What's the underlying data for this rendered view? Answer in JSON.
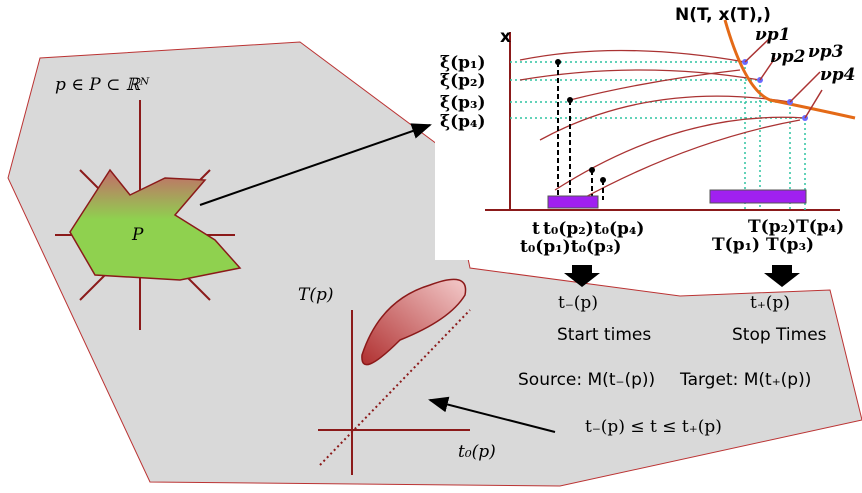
{
  "inset": {
    "curve_label": "N(T, x(T),)",
    "axis_label": "x",
    "normals": [
      "νp1",
      "νp2",
      "νp3",
      "νp4"
    ],
    "xi_labels": [
      "ξ(p₁)",
      "ξ(p₂)",
      "ξ(p₃)",
      "ξ(p₄)"
    ],
    "t_label": "t",
    "start_top": "t₀(p₂)t₀(p₄)",
    "start_bottom": "t₀(p₁)t₀(p₃)",
    "stop_top": "T(p₂)T(p₄)",
    "stop_bottom": "T(p₁) T(p₃)"
  },
  "parameter_space": {
    "title": "p ∈ P ⊂ ℝᴺ",
    "set_label": "P"
  },
  "time_plot": {
    "y_label": "T(p)",
    "x_label": "t₀(p)"
  },
  "start": {
    "symbol": "t₋(p)",
    "caption": "Start times",
    "source": "Source: M(t₋(p))"
  },
  "stop": {
    "symbol": "t₊(p)",
    "caption": "Stop Times",
    "target": "Target: M(t₊(p))"
  },
  "condition": "t₋(p) ≤ t ≤ t₊(p)"
}
